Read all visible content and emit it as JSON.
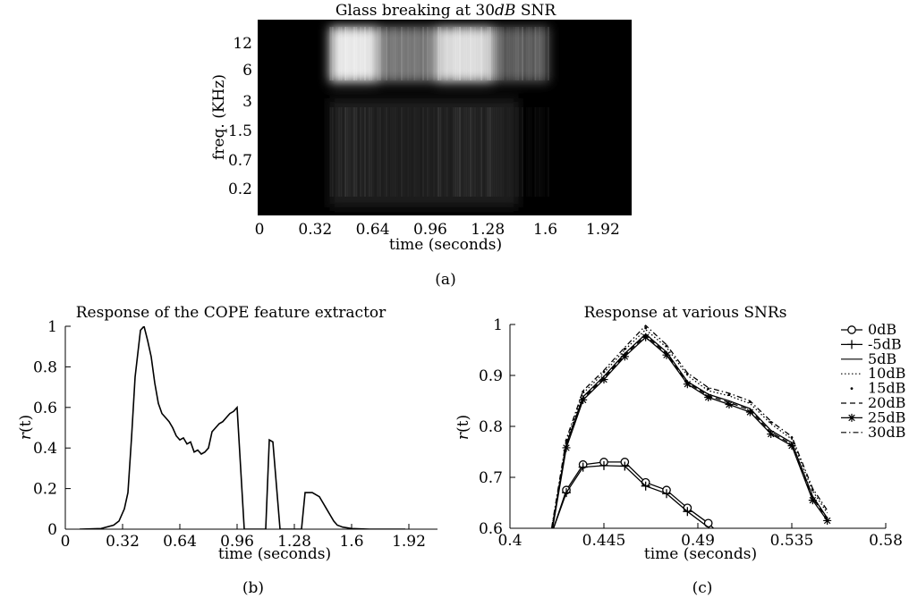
{
  "captions": {
    "a": "(a)",
    "b": "(b)",
    "c": "(c)"
  },
  "chart_data": [
    {
      "type": "heatmap",
      "title_parts": {
        "pre": "Glass breaking at ",
        "num": "30",
        "it": "dB",
        "post": " SNR"
      },
      "xlabel": "time (seconds)",
      "ylabel": "freq. (KHz)",
      "xlim": [
        0,
        2.08
      ],
      "x_ticks": [
        "0",
        "0.32",
        "0.64",
        "0.96",
        "1.28",
        "1.6",
        "1.92"
      ],
      "y_ticks": [
        "12",
        "6",
        "3",
        "1.5",
        "0.7",
        "0.2"
      ],
      "colormap": "gray",
      "colors": {
        "background": "#000000",
        "max": "#ffffff"
      },
      "energy_regions": [
        {
          "t": [
            0.4,
            0.66
          ],
          "freq": "6-12",
          "level": 0.9
        },
        {
          "t": [
            0.66,
            1.0
          ],
          "freq": "6-12",
          "level": 0.45
        },
        {
          "t": [
            1.0,
            1.3
          ],
          "freq": "6-12",
          "level": 0.85
        },
        {
          "t": [
            1.3,
            1.62
          ],
          "freq": "6-12",
          "level": 0.35
        },
        {
          "t": [
            0.4,
            1.45
          ],
          "freq": "0.2-3",
          "level": 0.12
        }
      ]
    },
    {
      "type": "line",
      "title": "Response of the COPE feature extractor",
      "xlabel": "time (seconds)",
      "ylabel_main": "r",
      "ylabel_arg": "(t)",
      "xlim": [
        0,
        2.08
      ],
      "ylim": [
        0,
        1
      ],
      "x_ticks": [
        "0",
        "0.32",
        "0.64",
        "0.96",
        "1.28",
        "1.6",
        "1.92"
      ],
      "y_ticks": [
        "0",
        "0.2",
        "0.4",
        "0.6",
        "0.8",
        "1"
      ],
      "series": [
        {
          "color": "#000000",
          "x": [
            0.08,
            0.2,
            0.27,
            0.3,
            0.33,
            0.35,
            0.37,
            0.39,
            0.42,
            0.44,
            0.46,
            0.48,
            0.5,
            0.52,
            0.54,
            0.56,
            0.58,
            0.6,
            0.62,
            0.64,
            0.66,
            0.68,
            0.7,
            0.72,
            0.74,
            0.76,
            0.78,
            0.8,
            0.82,
            0.84,
            0.86,
            0.88,
            0.9,
            0.92,
            0.94,
            0.96,
            0.98,
            1.0,
            1.01,
            1.02,
            1.04,
            1.12,
            1.14,
            1.16,
            1.2,
            1.32,
            1.34,
            1.38,
            1.42,
            1.44,
            1.46,
            1.48,
            1.5,
            1.52,
            1.55,
            1.6,
            1.7,
            1.8,
            1.9
          ],
          "y": [
            0,
            0.003,
            0.02,
            0.04,
            0.1,
            0.18,
            0.45,
            0.75,
            0.98,
            1.0,
            0.93,
            0.85,
            0.72,
            0.62,
            0.57,
            0.55,
            0.53,
            0.5,
            0.46,
            0.44,
            0.45,
            0.42,
            0.43,
            0.38,
            0.39,
            0.37,
            0.38,
            0.4,
            0.48,
            0.5,
            0.52,
            0.53,
            0.55,
            0.57,
            0.58,
            0.6,
            0.3,
            0,
            0,
            0,
            0,
            0,
            0.44,
            0.43,
            0,
            0,
            0.18,
            0.18,
            0.16,
            0.13,
            0.1,
            0.07,
            0.04,
            0.02,
            0.01,
            0.003,
            0,
            0,
            0
          ]
        }
      ]
    },
    {
      "type": "line",
      "title": "Response at various SNRs",
      "xlabel": "time (seconds)",
      "ylabel_main": "r",
      "ylabel_arg": "(t)",
      "xlim": [
        0.4,
        0.58
      ],
      "ylim": [
        0.6,
        1
      ],
      "x_ticks": [
        0.4,
        0.445,
        0.49,
        0.535,
        0.58
      ],
      "y_ticks": [
        0.6,
        0.7,
        0.8,
        0.9,
        1
      ],
      "legend_position": "top-right",
      "series": [
        {
          "name": "0dB",
          "marker": "circle",
          "dash": "solid",
          "x": [
            0.42,
            0.427,
            0.435,
            0.445,
            0.455,
            0.465,
            0.475,
            0.485,
            0.495,
            0.5
          ],
          "y": [
            0.59,
            0.675,
            0.725,
            0.73,
            0.73,
            0.69,
            0.675,
            0.64,
            0.61,
            0.59
          ]
        },
        {
          "name": "-5dB",
          "marker": "plus",
          "dash": "solid",
          "x": [
            0.42,
            0.427,
            0.435,
            0.445,
            0.455,
            0.465,
            0.475,
            0.485,
            0.495,
            0.5
          ],
          "y": [
            0.59,
            0.67,
            0.72,
            0.723,
            0.722,
            0.683,
            0.668,
            0.633,
            0.602,
            0.585
          ]
        },
        {
          "name": "5dB",
          "marker": "none",
          "dash": "solid",
          "x": [
            0.42,
            0.427,
            0.435,
            0.445,
            0.455,
            0.465,
            0.475,
            0.485,
            0.495,
            0.505,
            0.515,
            0.525,
            0.535,
            0.545,
            0.552
          ],
          "y": [
            0.595,
            0.765,
            0.858,
            0.898,
            0.943,
            0.981,
            0.946,
            0.888,
            0.863,
            0.85,
            0.835,
            0.792,
            0.768,
            0.663,
            0.62
          ]
        },
        {
          "name": "10dB",
          "marker": "none",
          "dash": "dotted",
          "x": [
            0.42,
            0.427,
            0.435,
            0.445,
            0.455,
            0.465,
            0.475,
            0.485,
            0.495,
            0.505,
            0.515,
            0.525,
            0.535,
            0.545,
            0.552
          ],
          "y": [
            0.6,
            0.77,
            0.865,
            0.905,
            0.95,
            0.99,
            0.955,
            0.9,
            0.87,
            0.86,
            0.845,
            0.805,
            0.775,
            0.673,
            0.63
          ]
        },
        {
          "name": "15dB",
          "marker": "dot",
          "dash": "none",
          "x": [
            0.427,
            0.435,
            0.445,
            0.455,
            0.465,
            0.475,
            0.485,
            0.495,
            0.505,
            0.515,
            0.525,
            0.535,
            0.545
          ],
          "y": [
            0.772,
            0.868,
            0.907,
            0.952,
            0.993,
            0.958,
            0.903,
            0.874,
            0.862,
            0.848,
            0.808,
            0.778,
            0.675
          ]
        },
        {
          "name": "20dB",
          "marker": "none",
          "dash": "dashed",
          "x": [
            0.42,
            0.427,
            0.435,
            0.445,
            0.455,
            0.465,
            0.475,
            0.485,
            0.495,
            0.505,
            0.515,
            0.525,
            0.535,
            0.545,
            0.552
          ],
          "y": [
            0.593,
            0.762,
            0.855,
            0.895,
            0.94,
            0.978,
            0.943,
            0.886,
            0.86,
            0.847,
            0.832,
            0.788,
            0.765,
            0.66,
            0.618
          ]
        },
        {
          "name": "25dB",
          "marker": "asterisk",
          "dash": "solid",
          "x": [
            0.42,
            0.427,
            0.435,
            0.445,
            0.455,
            0.465,
            0.475,
            0.485,
            0.495,
            0.505,
            0.515,
            0.525,
            0.535,
            0.545,
            0.552
          ],
          "y": [
            0.59,
            0.758,
            0.852,
            0.892,
            0.937,
            0.975,
            0.94,
            0.883,
            0.857,
            0.843,
            0.828,
            0.785,
            0.762,
            0.655,
            0.615
          ]
        },
        {
          "name": "30dB",
          "marker": "none",
          "dash": "dashdot",
          "x": [
            0.42,
            0.427,
            0.435,
            0.445,
            0.455,
            0.465,
            0.475,
            0.485,
            0.495,
            0.505,
            0.515,
            0.525,
            0.535,
            0.545,
            0.552
          ],
          "y": [
            0.602,
            0.775,
            0.87,
            0.91,
            0.955,
            0.998,
            0.96,
            0.905,
            0.876,
            0.865,
            0.85,
            0.81,
            0.78,
            0.678,
            0.635
          ]
        }
      ]
    }
  ]
}
